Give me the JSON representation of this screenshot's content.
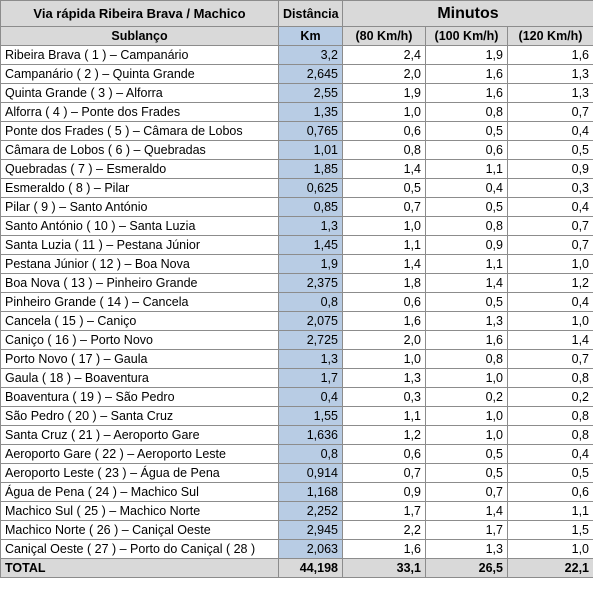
{
  "header": {
    "title": "Via rápida Ribeira Brava / Machico",
    "distance": "Distância",
    "minutes": "Minutos",
    "section": "Sublanço",
    "km": "Km",
    "speed80": "(80 Km/h)",
    "speed100": "(100 Km/h)",
    "speed120": "(120 Km/h)"
  },
  "rows": [
    [
      "Ribeira Brava ( 1 ) – Campanário",
      "3,2",
      "2,4",
      "1,9",
      "1,6"
    ],
    [
      "Campanário ( 2 ) – Quinta Grande",
      "2,645",
      "2,0",
      "1,6",
      "1,3"
    ],
    [
      "Quinta Grande ( 3 ) – Alforra",
      "2,55",
      "1,9",
      "1,6",
      "1,3"
    ],
    [
      "Alforra ( 4 ) – Ponte dos Frades",
      "1,35",
      "1,0",
      "0,8",
      "0,7"
    ],
    [
      "Ponte dos Frades ( 5 ) – Câmara de Lobos",
      "0,765",
      "0,6",
      "0,5",
      "0,4"
    ],
    [
      "Câmara de Lobos ( 6 ) – Quebradas",
      "1,01",
      "0,8",
      "0,6",
      "0,5"
    ],
    [
      "Quebradas ( 7 ) – Esmeraldo",
      "1,85",
      "1,4",
      "1,1",
      "0,9"
    ],
    [
      "Esmeraldo ( 8 ) – Pilar",
      "0,625",
      "0,5",
      "0,4",
      "0,3"
    ],
    [
      "Pilar ( 9 ) – Santo António",
      "0,85",
      "0,7",
      "0,5",
      "0,4"
    ],
    [
      "Santo António ( 10 ) – Santa Luzia",
      "1,3",
      "1,0",
      "0,8",
      "0,7"
    ],
    [
      "Santa Luzia ( 11 ) – Pestana Júnior",
      "1,45",
      "1,1",
      "0,9",
      "0,7"
    ],
    [
      "Pestana Júnior ( 12 ) – Boa Nova",
      "1,9",
      "1,4",
      "1,1",
      "1,0"
    ],
    [
      "Boa Nova ( 13 ) – Pinheiro Grande",
      "2,375",
      "1,8",
      "1,4",
      "1,2"
    ],
    [
      "Pinheiro Grande ( 14 ) – Cancela",
      "0,8",
      "0,6",
      "0,5",
      "0,4"
    ],
    [
      "Cancela ( 15 ) – Caniço",
      "2,075",
      "1,6",
      "1,3",
      "1,0"
    ],
    [
      "Caniço ( 16 ) – Porto Novo",
      "2,725",
      "2,0",
      "1,6",
      "1,4"
    ],
    [
      "Porto Novo ( 17 ) – Gaula",
      "1,3",
      "1,0",
      "0,8",
      "0,7"
    ],
    [
      "Gaula ( 18 ) – Boaventura",
      "1,7",
      "1,3",
      "1,0",
      "0,8"
    ],
    [
      "Boaventura ( 19 ) – São Pedro",
      "0,4",
      "0,3",
      "0,2",
      "0,2"
    ],
    [
      "São Pedro ( 20 ) – Santa Cruz",
      "1,55",
      "1,1",
      "1,0",
      "0,8"
    ],
    [
      "Santa Cruz ( 21 ) – Aeroporto Gare",
      "1,636",
      "1,2",
      "1,0",
      "0,8"
    ],
    [
      "Aeroporto Gare ( 22 ) – Aeroporto Leste",
      "0,8",
      "0,6",
      "0,5",
      "0,4"
    ],
    [
      "Aeroporto Leste ( 23 ) – Água de Pena",
      "0,914",
      "0,7",
      "0,5",
      "0,5"
    ],
    [
      "Água de Pena ( 24 ) – Machico Sul",
      "1,168",
      "0,9",
      "0,7",
      "0,6"
    ],
    [
      "Machico Sul ( 25 ) – Machico Norte",
      "2,252",
      "1,7",
      "1,4",
      "1,1"
    ],
    [
      "Machico Norte ( 26 ) – Caniçal Oeste",
      "2,945",
      "2,2",
      "1,7",
      "1,5"
    ],
    [
      "Caniçal Oeste ( 27 ) – Porto do Caniçal ( 28 )",
      "2,063",
      "1,6",
      "1,3",
      "1,0"
    ]
  ],
  "total": [
    "TOTAL",
    "44,198",
    "33,1",
    "26,5",
    "22,1"
  ],
  "colors": {
    "header_gray": "#d9d9d9",
    "km_blue": "#b8cce4",
    "grid": "#8c8c8c"
  }
}
